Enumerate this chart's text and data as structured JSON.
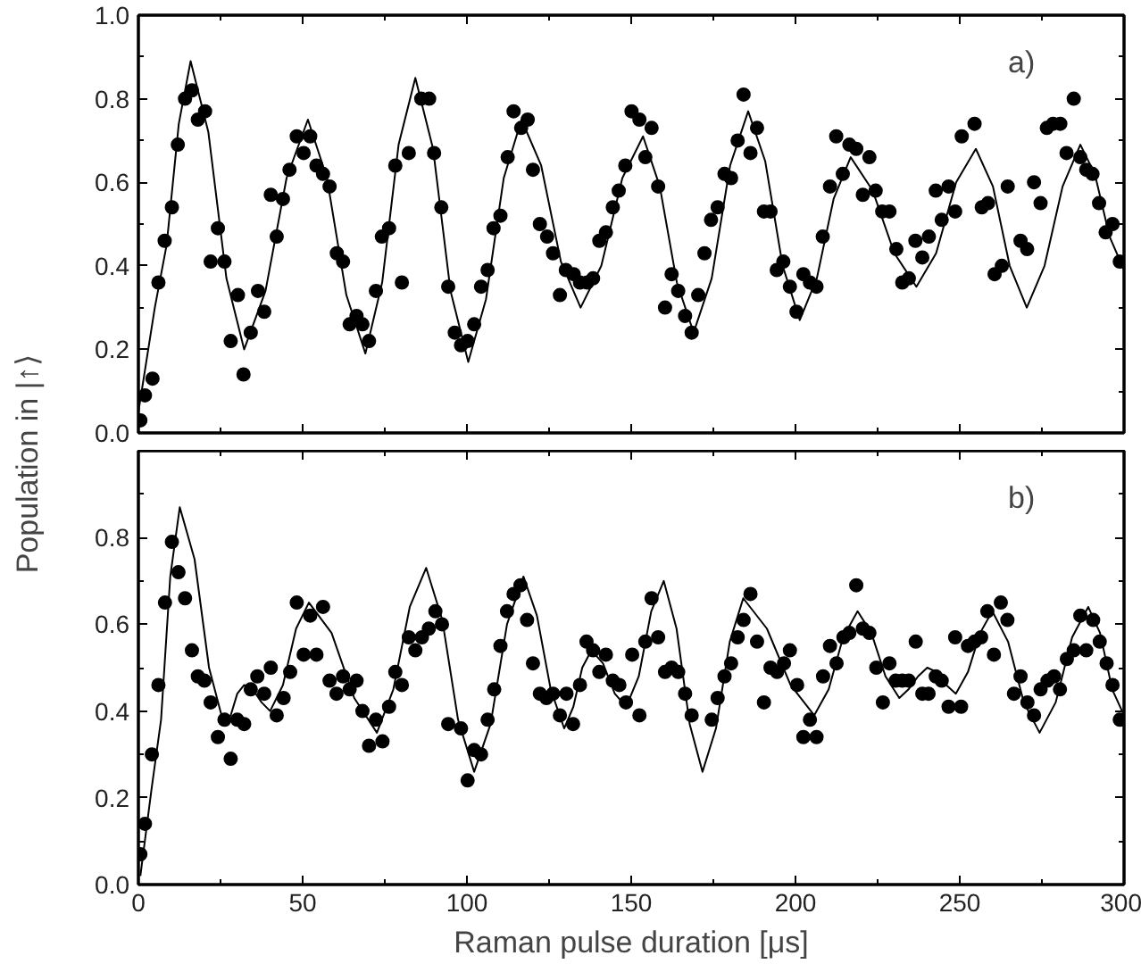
{
  "chart_data": [
    {
      "type": "scatter",
      "ylabel": "Population in |↑⟩",
      "annotations": [
        "a)"
      ],
      "xlim": [
        0,
        300
      ],
      "ylim": [
        0,
        1.0
      ],
      "tick_labels": "y",
      "grid": false,
      "marker": "circle",
      "xticks": [
        0,
        {
          "value": 25,
          "label": null
        },
        50,
        {
          "value": 75,
          "label": null
        },
        100,
        {
          "value": 125,
          "label": null
        },
        150,
        {
          "value": 175,
          "label": null
        },
        200,
        {
          "value": 225,
          "label": null
        },
        250,
        {
          "value": 275,
          "label": null
        },
        300
      ],
      "yticks": [
        {
          "value": 0,
          "label": "0.0"
        },
        {
          "value": 0.1,
          "label": null
        },
        {
          "value": 0.2,
          "label": "0.2"
        },
        {
          "value": 0.3,
          "label": null
        },
        {
          "value": 0.4,
          "label": "0.4"
        },
        {
          "value": 0.5,
          "label": null
        },
        {
          "value": 0.6,
          "label": "0.6"
        },
        {
          "value": 0.7,
          "label": null
        },
        {
          "value": 0.8,
          "label": "0.8"
        },
        {
          "value": 0.9,
          "label": null
        },
        {
          "value": 1.0,
          "label": "1.0"
        }
      ],
      "series": [
        {
          "color": "#000000",
          "x": [
            0.6,
            2,
            4.3,
            6.1,
            8,
            10.2,
            12,
            14.2,
            16.3,
            18.1,
            20.3,
            22,
            24.2,
            26.2,
            28.1,
            30.3,
            32,
            34.2,
            36.4,
            38.3,
            40.3,
            42.1,
            44,
            46,
            48.2,
            50.3,
            52.3,
            54.2,
            56.2,
            58.2,
            60.4,
            62.3,
            64.3,
            66.4,
            68.2,
            70.2,
            72.3,
            74.1,
            76.3,
            78.2,
            80.2,
            82.3,
            86.1,
            88.5,
            90,
            92.2,
            94.3,
            96.3,
            98.2,
            100.2,
            102.2,
            104.3,
            106.3,
            108.1,
            110.2,
            112.4,
            114.2,
            116.5,
            118.5,
            120.1,
            122.2,
            124.4,
            126.2,
            128.3,
            130.1,
            132.5,
            134.4,
            136.6,
            138.4,
            140.3,
            142.3,
            144.4,
            146.2,
            148.2,
            150.1,
            152.5,
            154.3,
            156.2,
            158.2,
            160.3,
            162.3,
            164.3,
            166.4,
            168.4,
            170.4,
            172.3,
            174.3,
            176.3,
            178.4,
            180.4,
            182.4,
            184.2,
            186.3,
            188.3,
            190.4,
            192.4,
            194.3,
            196.3,
            198.3,
            200.3,
            202.4,
            204.4,
            206.4,
            208.3,
            210.5,
            212.4,
            214.4,
            216.4,
            218.5,
            220.5,
            222.5,
            224.4,
            226.4,
            228.6,
            230.7,
            232.5,
            234.5,
            236.5,
            238.6,
            240.6,
            242.7,
            244.5,
            246.6,
            248.6,
            250.6,
            254.5,
            256.7,
            258.6,
            260.6,
            262.8,
            264.6,
            268.5,
            270.5,
            272.6,
            274.6,
            276.5,
            278.4,
            280.6,
            282.5,
            284.7,
            286.7,
            288.5,
            290.4,
            292.4,
            294.4,
            296.5,
            298.7
          ],
          "values": [
            0.03,
            0.09,
            0.13,
            0.36,
            0.46,
            0.54,
            0.69,
            0.8,
            0.82,
            0.75,
            0.77,
            0.41,
            0.49,
            0.41,
            0.22,
            0.33,
            0.14,
            0.24,
            0.34,
            0.29,
            0.57,
            0.47,
            0.56,
            0.63,
            0.71,
            0.67,
            0.71,
            0.64,
            0.62,
            0.59,
            0.43,
            0.41,
            0.26,
            0.28,
            0.26,
            0.22,
            0.34,
            0.47,
            0.49,
            0.64,
            0.36,
            0.67,
            0.8,
            0.8,
            0.67,
            0.54,
            0.35,
            0.24,
            0.21,
            0.22,
            0.26,
            0.35,
            0.39,
            0.49,
            0.52,
            0.66,
            0.77,
            0.73,
            0.75,
            0.63,
            0.5,
            0.47,
            0.43,
            0.33,
            0.39,
            0.38,
            0.36,
            0.36,
            0.37,
            0.46,
            0.48,
            0.54,
            0.58,
            0.64,
            0.77,
            0.75,
            0.66,
            0.73,
            0.59,
            0.3,
            0.38,
            0.34,
            0.28,
            0.24,
            0.33,
            0.43,
            0.51,
            0.54,
            0.62,
            0.61,
            0.7,
            0.81,
            0.67,
            0.73,
            0.53,
            0.53,
            0.39,
            0.41,
            0.35,
            0.29,
            0.38,
            0.36,
            0.35,
            0.47,
            0.59,
            0.71,
            0.62,
            0.69,
            0.68,
            0.57,
            0.66,
            0.58,
            0.53,
            0.53,
            0.44,
            0.36,
            0.37,
            0.46,
            0.42,
            0.47,
            0.58,
            0.51,
            0.59,
            0.53,
            0.71,
            0.74,
            0.54,
            0.55,
            0.38,
            0.4,
            0.59,
            0.46,
            0.44,
            0.6,
            0.55,
            0.73,
            0.74,
            0.74,
            0.67,
            0.8,
            0.66,
            0.63,
            0.62,
            0.55,
            0.48,
            0.5,
            0.41
          ]
        },
        {
          "type": "line",
          "marker": "none",
          "color": "#000000",
          "line_style": "solid",
          "x": [
            0,
            5,
            8.6,
            12.3,
            15.9,
            21.3,
            26.8,
            32.2,
            38.7,
            45.1,
            51.6,
            57.4,
            63.3,
            69.1,
            74.2,
            79.2,
            84.3,
            89.7,
            95.0,
            100.4,
            105.8,
            111.2,
            116.6,
            122.6,
            128.6,
            134.6,
            140.9,
            147.3,
            153.6,
            158.7,
            163.9,
            169,
            174.5,
            180.1,
            185.6,
            190.8,
            196.1,
            201.3,
            206.5,
            211.6,
            216.8,
            223.5,
            230.1,
            236.8,
            242.8,
            248.9,
            254.9,
            260.1,
            265.2,
            270.4,
            275.8,
            281.3,
            286.7,
            291.1,
            295.6,
            300
          ],
          "values": [
            0.05,
            0.3,
            0.45,
            0.74,
            0.89,
            0.72,
            0.37,
            0.2,
            0.34,
            0.61,
            0.75,
            0.61,
            0.33,
            0.19,
            0.36,
            0.69,
            0.85,
            0.68,
            0.34,
            0.17,
            0.32,
            0.61,
            0.75,
            0.64,
            0.41,
            0.3,
            0.4,
            0.61,
            0.71,
            0.59,
            0.36,
            0.24,
            0.37,
            0.64,
            0.77,
            0.65,
            0.4,
            0.27,
            0.37,
            0.56,
            0.66,
            0.58,
            0.43,
            0.35,
            0.43,
            0.6,
            0.68,
            0.59,
            0.4,
            0.3,
            0.4,
            0.59,
            0.69,
            0.62,
            0.47,
            0.39
          ]
        }
      ]
    },
    {
      "type": "scatter",
      "xlabel": "Raman pulse duration [μs]",
      "annotations": [
        "b)"
      ],
      "xlim": [
        0,
        300
      ],
      "ylim": [
        0,
        1.0
      ],
      "grid": false,
      "marker": "circle",
      "xticks": [
        0,
        {
          "value": 25,
          "label": null
        },
        50,
        {
          "value": 75,
          "label": null
        },
        100,
        {
          "value": 125,
          "label": null
        },
        150,
        {
          "value": 175,
          "label": null
        },
        200,
        {
          "value": 225,
          "label": null
        },
        250,
        {
          "value": 275,
          "label": null
        },
        300
      ],
      "yticks": [
        {
          "value": 0,
          "label": "0.0"
        },
        {
          "value": 0.1,
          "label": null
        },
        {
          "value": 0.2,
          "label": "0.2"
        },
        {
          "value": 0.3,
          "label": null
        },
        {
          "value": 0.4,
          "label": "0.4"
        },
        {
          "value": 0.5,
          "label": null
        },
        {
          "value": 0.6,
          "label": "0.6"
        },
        {
          "value": 0.7,
          "label": null
        },
        {
          "value": 0.8,
          "label": "0.8"
        },
        {
          "value": 0.9,
          "label": null
        }
      ],
      "series": [
        {
          "color": "#000000",
          "x": [
            0.6,
            2,
            4.1,
            6.1,
            8.1,
            10.2,
            12.2,
            14.2,
            16.3,
            18.1,
            20.1,
            22,
            24.2,
            26.2,
            28.1,
            30.1,
            32.2,
            34.2,
            36.2,
            38.3,
            40.3,
            42.1,
            44.2,
            46.2,
            48.2,
            50.3,
            52.3,
            54.2,
            56.2,
            58.2,
            60.3,
            62.3,
            64.3,
            66.4,
            68.2,
            70.2,
            72.3,
            74.3,
            76.3,
            78.2,
            80.2,
            82.3,
            84.3,
            86.3,
            88.4,
            90.4,
            92.4,
            94.3,
            98.2,
            100.2,
            102.2,
            104.3,
            106.3,
            108.3,
            110.2,
            112.2,
            114.2,
            116.3,
            118.3,
            120.1,
            122.2,
            124.2,
            126.2,
            128.3,
            130.3,
            132.3,
            134.4,
            136.4,
            138.4,
            140.3,
            142.3,
            144.4,
            146.4,
            148.4,
            150.3,
            152.5,
            154.3,
            156.2,
            158.2,
            160.3,
            162.3,
            164.3,
            166.4,
            168.4,
            174.5,
            176.3,
            178.4,
            180.4,
            182.4,
            184.2,
            186.3,
            188.3,
            190.4,
            192.4,
            194.4,
            196.5,
            198.3,
            200.5,
            202.4,
            204.4,
            206.4,
            208.4,
            210.5,
            212.5,
            214.6,
            216.4,
            218.5,
            220.5,
            222.5,
            224.6,
            226.6,
            228.6,
            230.5,
            232.5,
            234.5,
            236.6,
            238.6,
            240.5,
            242.7,
            244.5,
            246.6,
            248.6,
            250.4,
            252.5,
            254.5,
            256.5,
            258.4,
            260.4,
            262.5,
            264.5,
            266.5,
            268.5,
            270.6,
            272.6,
            274.6,
            276.7,
            278.7,
            280.5,
            282.6,
            284.7,
            286.7,
            288.5,
            290.6,
            292.6,
            294.7,
            296.5,
            298.7
          ],
          "values": [
            0.07,
            0.14,
            0.3,
            0.46,
            0.65,
            0.79,
            0.72,
            0.66,
            0.54,
            0.48,
            0.47,
            0.42,
            0.34,
            0.38,
            0.29,
            0.38,
            0.37,
            0.45,
            0.48,
            0.44,
            0.5,
            0.39,
            0.43,
            0.49,
            0.65,
            0.53,
            0.62,
            0.53,
            0.64,
            0.47,
            0.44,
            0.48,
            0.45,
            0.47,
            0.4,
            0.32,
            0.38,
            0.33,
            0.41,
            0.49,
            0.46,
            0.57,
            0.54,
            0.57,
            0.59,
            0.63,
            0.6,
            0.37,
            0.36,
            0.24,
            0.31,
            0.3,
            0.38,
            0.45,
            0.55,
            0.63,
            0.67,
            0.69,
            0.61,
            0.51,
            0.44,
            0.43,
            0.44,
            0.39,
            0.44,
            0.37,
            0.46,
            0.56,
            0.54,
            0.49,
            0.53,
            0.47,
            0.46,
            0.42,
            0.53,
            0.39,
            0.56,
            0.66,
            0.57,
            0.49,
            0.5,
            0.49,
            0.44,
            0.39,
            0.38,
            0.43,
            0.48,
            0.51,
            0.57,
            0.61,
            0.67,
            0.56,
            0.42,
            0.5,
            0.49,
            0.51,
            0.54,
            0.46,
            0.34,
            0.38,
            0.34,
            0.48,
            0.55,
            0.51,
            0.57,
            0.58,
            0.69,
            0.59,
            0.58,
            0.5,
            0.42,
            0.51,
            0.47,
            0.47,
            0.47,
            0.56,
            0.44,
            0.44,
            0.48,
            0.47,
            0.41,
            0.57,
            0.41,
            0.55,
            0.56,
            0.57,
            0.63,
            0.53,
            0.65,
            0.61,
            0.44,
            0.48,
            0.42,
            0.39,
            0.45,
            0.47,
            0.48,
            0.45,
            0.52,
            0.54,
            0.62,
            0.54,
            0.61,
            0.56,
            0.51,
            0.46,
            0.38
          ]
        },
        {
          "type": "line",
          "marker": "none",
          "color": "#000000",
          "line_style": "solid",
          "x": [
            0.6,
            4,
            6.9,
            9.7,
            12.6,
            17.1,
            21.5,
            26,
            28.1,
            30.1,
            32.2,
            34.8,
            37.5,
            40.1,
            44.0,
            48.0,
            51.9,
            58.8,
            65.7,
            72.6,
            77.6,
            82.6,
            87.6,
            92.5,
            97.3,
            102.2,
            107.2,
            112.2,
            117.2,
            121.3,
            125.5,
            129.6,
            132.4,
            135.1,
            137.9,
            141.4,
            145.0,
            148.5,
            152.3,
            156.1,
            159.9,
            163.8,
            167.8,
            171.7,
            175.8,
            180.0,
            184.1,
            191.3,
            198.5,
            205.7,
            210.1,
            214.5,
            218.9,
            223.1,
            227.4,
            231.6,
            234.4,
            237.3,
            240.1,
            243.0,
            245.9,
            248.8,
            252.5,
            256.2,
            259.9,
            264.7,
            269.5,
            274.3,
            279.2,
            284.2,
            289.1,
            292.7,
            296.4,
            300
          ],
          "values": [
            0.02,
            0.22,
            0.38,
            0.71,
            0.87,
            0.75,
            0.5,
            0.37,
            0.39,
            0.44,
            0.46,
            0.45,
            0.42,
            0.4,
            0.46,
            0.59,
            0.65,
            0.58,
            0.43,
            0.35,
            0.45,
            0.64,
            0.73,
            0.61,
            0.38,
            0.26,
            0.37,
            0.6,
            0.71,
            0.62,
            0.45,
            0.36,
            0.41,
            0.5,
            0.54,
            0.51,
            0.44,
            0.41,
            0.48,
            0.63,
            0.7,
            0.59,
            0.37,
            0.26,
            0.36,
            0.56,
            0.66,
            0.59,
            0.46,
            0.39,
            0.45,
            0.57,
            0.63,
            0.58,
            0.48,
            0.43,
            0.45,
            0.48,
            0.5,
            0.49,
            0.46,
            0.44,
            0.49,
            0.58,
            0.63,
            0.56,
            0.42,
            0.35,
            0.42,
            0.57,
            0.64,
            0.58,
            0.45,
            0.39
          ]
        }
      ]
    }
  ]
}
